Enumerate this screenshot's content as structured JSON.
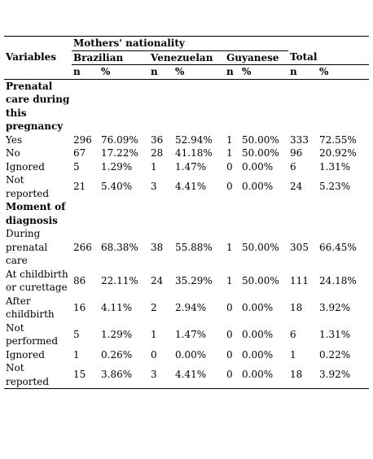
{
  "header": {
    "group_title": "Mothers' nationality",
    "variables": "Variables",
    "nationalities": [
      "Brazilian",
      "Venezuelan",
      "Guyanese"
    ],
    "total": "Total",
    "n": "n",
    "pct": "%"
  },
  "sections": [
    {
      "title": "Prenatal care during this pregnancy",
      "rows": [
        {
          "label": "Yes",
          "values": [
            "296",
            "76.09%",
            "36",
            "52.94%",
            "1",
            "50.00%",
            "333",
            "72.55%"
          ]
        },
        {
          "label": "No",
          "values": [
            "67",
            "17.22%",
            "28",
            "41.18%",
            "1",
            "50.00%",
            "96",
            "20.92%"
          ]
        },
        {
          "label": "Ignored",
          "values": [
            "5",
            "1.29%",
            "1",
            "1.47%",
            "0",
            "0.00%",
            "6",
            "1.31%"
          ]
        },
        {
          "label": "Not reported",
          "values": [
            "21",
            "5.40%",
            "3",
            "4.41%",
            "0",
            "0.00%",
            "24",
            "5.23%"
          ]
        }
      ]
    },
    {
      "title": "Moment of diagnosis",
      "rows": [
        {
          "label": "During prenatal care",
          "values": [
            "266",
            "68.38%",
            "38",
            "55.88%",
            "1",
            "50.00%",
            "305",
            "66.45%"
          ]
        },
        {
          "label": "At childbirth or curettage",
          "values": [
            "86",
            "22.11%",
            "24",
            "35.29%",
            "1",
            "50.00%",
            "111",
            "24.18%"
          ]
        },
        {
          "label": "After childbirth",
          "values": [
            "16",
            "4.11%",
            "2",
            "2.94%",
            "0",
            "0.00%",
            "18",
            "3.92%"
          ]
        },
        {
          "label": "Not performed",
          "values": [
            "5",
            "1.29%",
            "1",
            "1.47%",
            "0",
            "0.00%",
            "6",
            "1.31%"
          ]
        },
        {
          "label": "Ignored",
          "values": [
            "1",
            "0.26%",
            "0",
            "0.00%",
            "0",
            "0.00%",
            "1",
            "0.22%"
          ]
        },
        {
          "label": "Not reported",
          "values": [
            "15",
            "3.86%",
            "3",
            "4.41%",
            "0",
            "0.00%",
            "18",
            "3.92%"
          ]
        }
      ]
    }
  ]
}
